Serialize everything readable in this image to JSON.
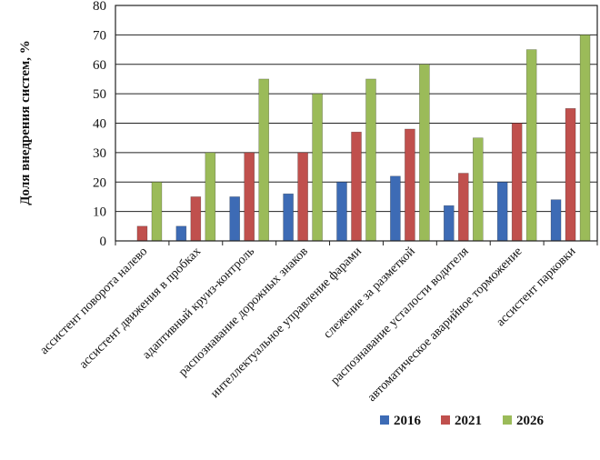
{
  "chart_data": {
    "type": "bar",
    "ylabel": "Доля  внедрения  систем, %",
    "xlabel": "",
    "ylim": [
      0,
      80
    ],
    "yticks": [
      0,
      10,
      20,
      30,
      40,
      50,
      60,
      70,
      80
    ],
    "grid": true,
    "legend_position": "bottom-right",
    "categories": [
      "ассистент поворота налево",
      "ассистент движения в пробках",
      "адаптивный  круиз-контроль",
      "распознавание дорожных знаков",
      "интеллектуальное  управление фарами",
      "слежение за разметкой",
      "распознавание усталости водителя",
      "автоматическое аварийное торможение",
      "ассистент парковки"
    ],
    "series": [
      {
        "name": "2016",
        "color": "#3d6bb5",
        "values": [
          0,
          5,
          15,
          16,
          20,
          22,
          12,
          20,
          14
        ]
      },
      {
        "name": "2021",
        "color": "#c0504d",
        "values": [
          5,
          15,
          30,
          30,
          37,
          38,
          23,
          40,
          45
        ]
      },
      {
        "name": "2026",
        "color": "#9bbb59",
        "values": [
          20,
          30,
          55,
          50,
          55,
          60,
          35,
          65,
          70
        ]
      }
    ]
  }
}
